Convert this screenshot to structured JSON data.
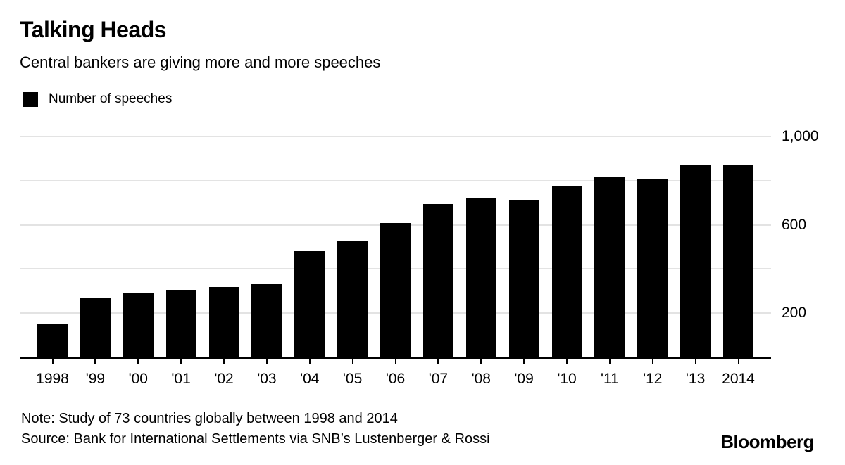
{
  "header": {
    "title": "Talking Heads",
    "subtitle": "Central bankers are giving more and more speeches"
  },
  "legend": {
    "label": "Number of speeches",
    "swatch_color": "#000000"
  },
  "chart_data": {
    "type": "bar",
    "title": "Talking Heads",
    "subtitle": "Central bankers are giving more and more speeches",
    "series_name": "Number of speeches",
    "categories": [
      "1998",
      "'99",
      "'00",
      "'01",
      "'02",
      "'03",
      "'04",
      "'05",
      "'06",
      "'07",
      "'08",
      "'09",
      "'10",
      "'11",
      "'12",
      "'13",
      "2014"
    ],
    "values": [
      150,
      270,
      290,
      305,
      320,
      335,
      480,
      530,
      610,
      695,
      720,
      715,
      775,
      820,
      810,
      870,
      870
    ],
    "xlabel": "",
    "ylabel": "",
    "ylim": [
      0,
      1000
    ],
    "y_gridlines": [
      200,
      400,
      600,
      800,
      1000
    ],
    "y_tick_labels": [
      {
        "value": 1000,
        "label": "1,000"
      },
      {
        "value": 600,
        "label": "600"
      },
      {
        "value": 200,
        "label": "200"
      }
    ],
    "grid": true,
    "legend_position": "top-left",
    "bar_color": "#000000",
    "gridline_color": "#e3e3e3",
    "axis_color": "#000000"
  },
  "footer": {
    "note": "Note: Study of 73 countries globally between 1998 and 2014",
    "source": "Source: Bank for International Settlements via SNB’s Lustenberger & Rossi",
    "brand": "Bloomberg"
  }
}
